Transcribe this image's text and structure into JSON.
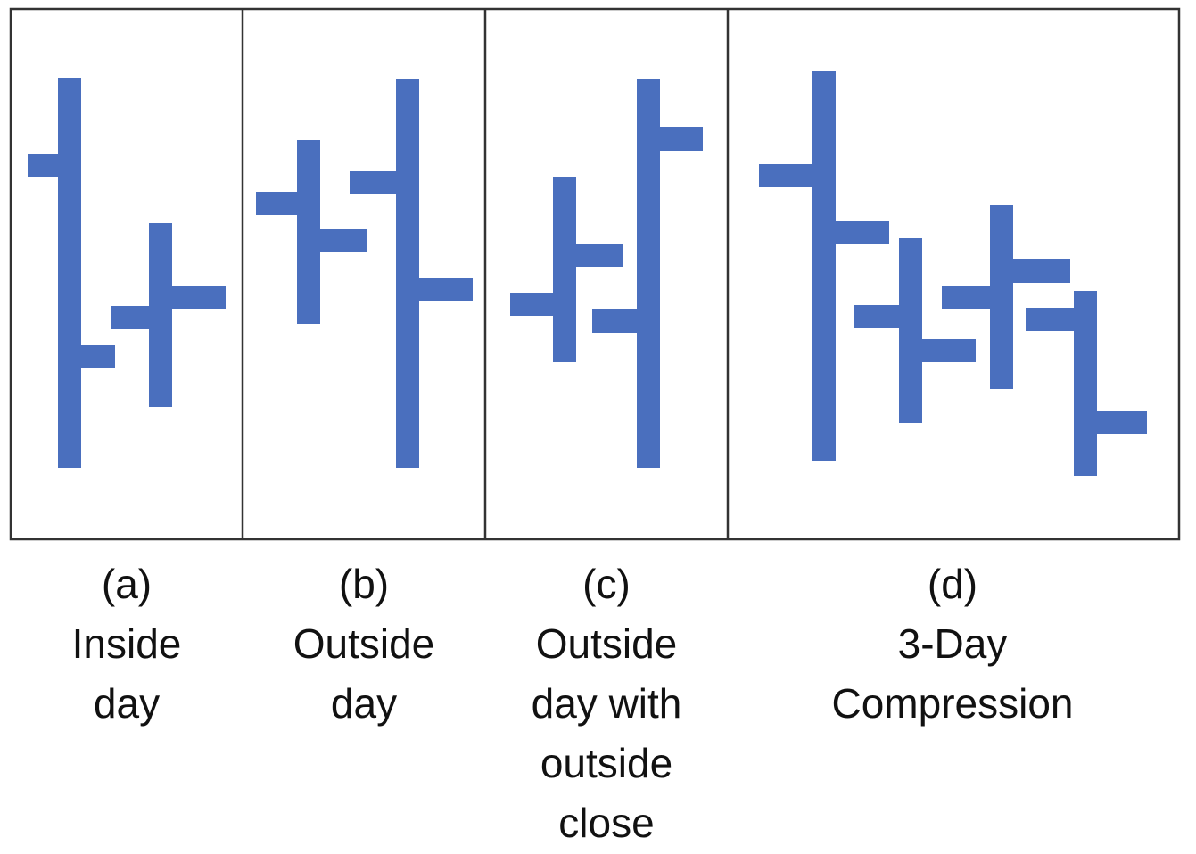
{
  "colors": {
    "bar": "#4A6FBE",
    "frame": "#333333",
    "background": "#ffffff",
    "text": "#111111"
  },
  "panels": [
    {
      "letter": "(a)",
      "label_lines": [
        "Inside",
        "day"
      ]
    },
    {
      "letter": "(b)",
      "label_lines": [
        "Outside",
        "day"
      ]
    },
    {
      "letter": "(c)",
      "label_lines": [
        "Outside",
        "day with",
        "outside",
        "close"
      ]
    },
    {
      "letter": "(d)",
      "label_lines": [
        "3-Day",
        "Compression"
      ]
    }
  ]
}
